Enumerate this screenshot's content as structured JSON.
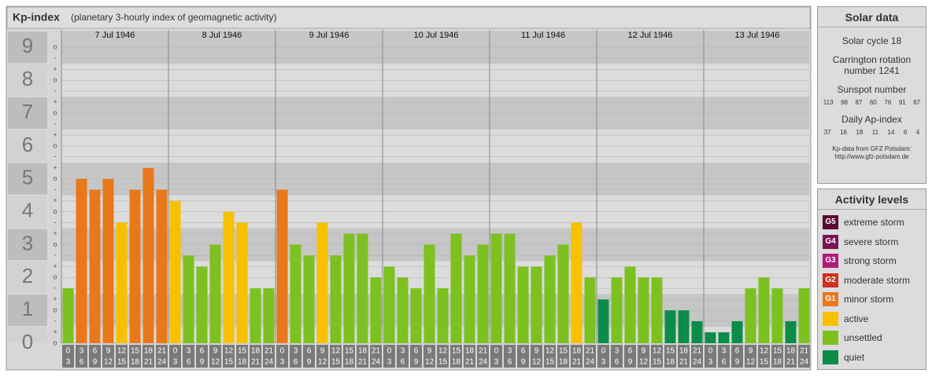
{
  "header": {
    "title": "Kp-index",
    "subtitle": "(planetary 3-hourly index of geomagnetic activity)"
  },
  "chart_data": {
    "type": "bar",
    "days": [
      "7 Jul 1946",
      "8 Jul 1946",
      "9 Jul 1946",
      "10 Jul 1946",
      "11 Jul 1946",
      "12 Jul 1946",
      "13 Jul 1946"
    ],
    "hour_bins": [
      0,
      3,
      6,
      9,
      12,
      15,
      18,
      21,
      24
    ],
    "values": [
      1.67,
      5,
      4.67,
      5,
      3.67,
      4.67,
      5.33,
      4.67,
      4.33,
      2.67,
      2.33,
      3,
      4,
      3.67,
      1.67,
      1.67,
      4.67,
      3,
      2.67,
      3.67,
      2.67,
      3.33,
      3.33,
      2,
      2.33,
      2,
      1.67,
      3,
      1.67,
      3.33,
      2.67,
      3,
      3.33,
      3.33,
      2.33,
      2.33,
      2.67,
      3,
      3.67,
      2,
      1.33,
      2,
      2.33,
      2,
      2,
      1,
      1,
      0.67,
      0.33,
      0.33,
      0.67,
      1.67,
      2,
      1.67,
      0.67,
      1.67
    ],
    "colors": [
      "#7cc120",
      "#e8781a",
      "#e8781a",
      "#e8781a",
      "#f7c100",
      "#e8781a",
      "#e8781a",
      "#e8781a",
      "#f7c100",
      "#7cc120",
      "#7cc120",
      "#7cc120",
      "#f7c100",
      "#f7c100",
      "#7cc120",
      "#7cc120",
      "#e8781a",
      "#7cc120",
      "#7cc120",
      "#f7c100",
      "#7cc120",
      "#7cc120",
      "#7cc120",
      "#7cc120",
      "#7cc120",
      "#7cc120",
      "#7cc120",
      "#7cc120",
      "#7cc120",
      "#7cc120",
      "#7cc120",
      "#7cc120",
      "#7cc120",
      "#7cc120",
      "#7cc120",
      "#7cc120",
      "#7cc120",
      "#7cc120",
      "#f7c100",
      "#7cc120",
      "#0b8c48",
      "#7cc120",
      "#7cc120",
      "#7cc120",
      "#7cc120",
      "#0b8c48",
      "#0b8c48",
      "#0b8c48",
      "#0b8c48",
      "#0b8c48",
      "#0b8c48",
      "#7cc120",
      "#7cc120",
      "#7cc120",
      "#0b8c48",
      "#7cc120"
    ],
    "ylim": [
      0,
      9.2
    ],
    "yticks": [
      0,
      1,
      2,
      3,
      4,
      5,
      6,
      7,
      8,
      9
    ],
    "minor_ticks": [
      {
        "value": 0,
        "label": "o"
      },
      {
        "value": 0.33,
        "label": "+"
      },
      {
        "value": 0.67,
        "label": "-"
      },
      {
        "value": 1,
        "label": "o"
      },
      {
        "value": 1.33,
        "label": "+"
      },
      {
        "value": 1.67,
        "label": "-"
      },
      {
        "value": 2,
        "label": "o"
      },
      {
        "value": 2.33,
        "label": "+"
      },
      {
        "value": 2.67,
        "label": "-"
      },
      {
        "value": 3,
        "label": "o"
      },
      {
        "value": 3.33,
        "label": "+"
      },
      {
        "value": 3.67,
        "label": "-"
      },
      {
        "value": 4,
        "label": "o"
      },
      {
        "value": 4.33,
        "label": "+"
      },
      {
        "value": 4.67,
        "label": "-"
      },
      {
        "value": 5,
        "label": "o"
      },
      {
        "value": 5.33,
        "label": "+"
      },
      {
        "value": 5.67,
        "label": "-"
      },
      {
        "value": 6,
        "label": "o"
      },
      {
        "value": 6.33,
        "label": "+"
      },
      {
        "value": 6.67,
        "label": "-"
      },
      {
        "value": 7,
        "label": "o"
      },
      {
        "value": 7.33,
        "label": "+"
      },
      {
        "value": 7.67,
        "label": "-"
      },
      {
        "value": 8,
        "label": "o"
      },
      {
        "value": 8.33,
        "label": "+"
      },
      {
        "value": 8.67,
        "label": "-"
      },
      {
        "value": 9,
        "label": "o"
      }
    ],
    "grid": true
  },
  "solar_data": {
    "title": "Solar data",
    "cycle": "Solar cycle 18",
    "rotation": "Carrington rotation number 1241",
    "sunspot_label": "Sunspot number",
    "sunspot": [
      113,
      98,
      87,
      60,
      76,
      91,
      87
    ],
    "ap_label": "Daily Ap-index",
    "ap": [
      37,
      16,
      18,
      11,
      14,
      6,
      4
    ],
    "source": [
      "Kp-data from GFZ Potsdam:",
      "http://www.gfz-potsdam.de"
    ]
  },
  "activity_levels": {
    "title": "Activity levels",
    "levels": [
      {
        "badge": "G5",
        "name": "extreme storm",
        "color": "#5a0a30"
      },
      {
        "badge": "G4",
        "name": "severe storm",
        "color": "#7a1450"
      },
      {
        "badge": "G3",
        "name": "strong storm",
        "color": "#b5187a"
      },
      {
        "badge": "G2",
        "name": "moderate storm",
        "color": "#d0301e"
      },
      {
        "badge": "G1",
        "name": "minor storm",
        "color": "#e8781a"
      },
      {
        "name": "active",
        "color": "#f7c100"
      },
      {
        "name": "unsettled",
        "color": "#7cc120"
      },
      {
        "name": "quiet",
        "color": "#0b8c48"
      }
    ]
  }
}
